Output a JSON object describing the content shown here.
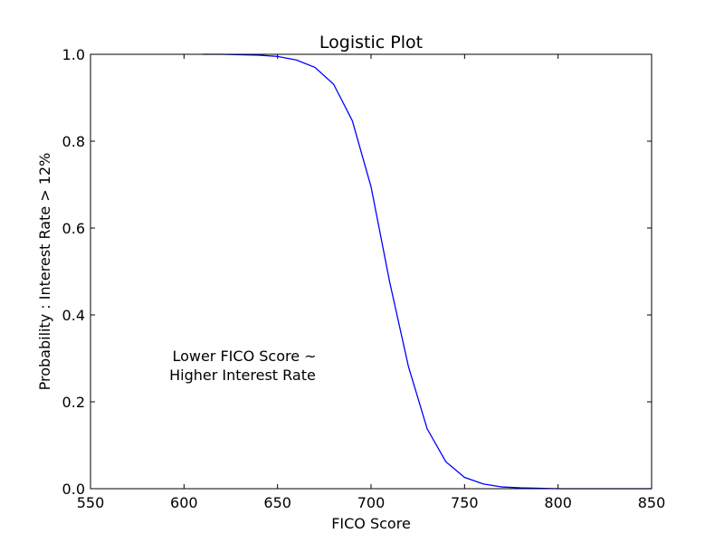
{
  "chart_data": {
    "type": "line",
    "title": "Logistic Plot",
    "xlabel": "FICO Score",
    "ylabel": "Probability : Interest Rate > 12%",
    "xlim": [
      550,
      850
    ],
    "ylim": [
      0.0,
      1.0
    ],
    "xticks": [
      "550",
      "600",
      "650",
      "700",
      "750",
      "800",
      "850"
    ],
    "yticks": [
      "0.0",
      "0.2",
      "0.4",
      "0.6",
      "0.8",
      "1.0"
    ],
    "grid": false,
    "line_color": "#0000ff",
    "annotation": [
      "Lower FICO Score ~",
      "Higher Interest Rate"
    ],
    "series": [
      {
        "x": [
          610,
          620,
          630,
          640,
          650,
          660,
          670,
          680,
          690,
          700,
          710,
          720,
          730,
          740,
          750,
          760,
          770,
          780,
          790,
          800,
          810,
          820,
          830,
          840,
          850
        ],
        "values": [
          1.0,
          1.0,
          0.999,
          0.998,
          0.995,
          0.987,
          0.97,
          0.931,
          0.847,
          0.695,
          0.475,
          0.281,
          0.138,
          0.062,
          0.026,
          0.011,
          0.004,
          0.002,
          0.001,
          0.0,
          0.0,
          0.0,
          0.0,
          0.0,
          0.0
        ]
      }
    ]
  }
}
